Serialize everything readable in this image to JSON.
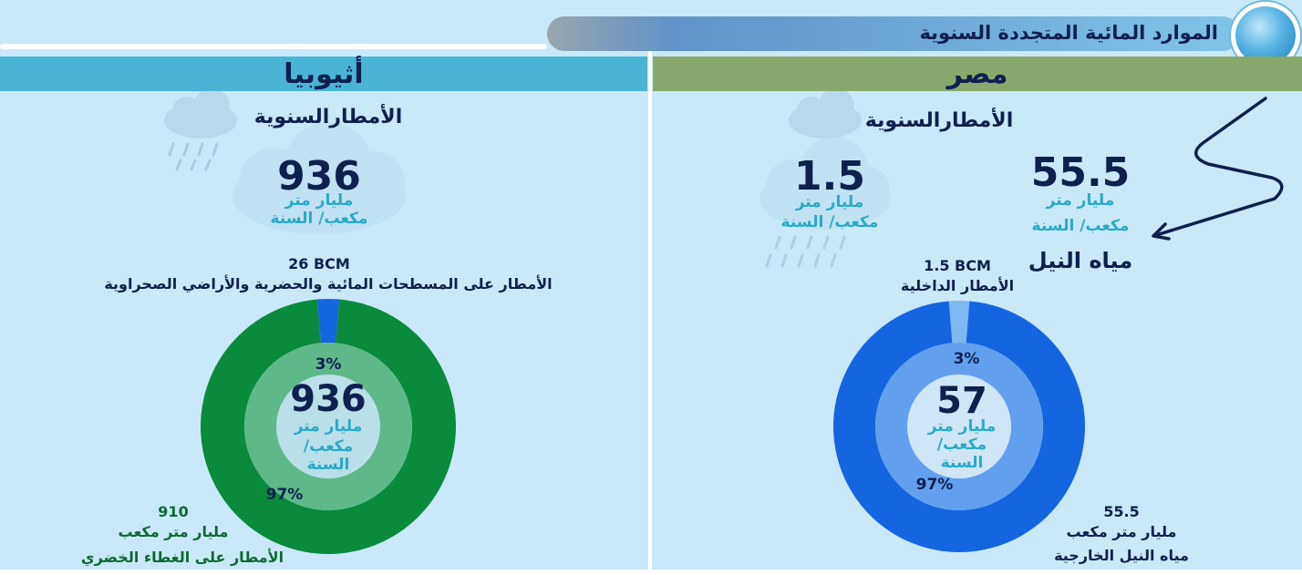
{
  "header": {
    "title": "الموارد المائية المتجددة السنوية"
  },
  "colors": {
    "background": "#c9e9f8",
    "ethiopia_band": "#4ab4d6",
    "egypt_band": "#88a86e",
    "text_dark": "#0f1f4f",
    "unit_teal": "#2aa9c9"
  },
  "icons": [
    "cloud-rain-icon",
    "cloud-icon",
    "nile-river-icon",
    "badge-icon"
  ],
  "ethiopia": {
    "country": "أثيوبيا",
    "annual_rain_label": "الأمطارالسنوية",
    "annual_rain_value": "936",
    "unit_line1": "مليار متر",
    "unit_line2": "مكعب/ السنة",
    "small_bcm": "26 BCM",
    "small_label": "الأمطار على المسطحات المائية والحضرية والأراضي الصحراوية",
    "center_value": "936",
    "center_unit1": "مليار متر",
    "center_unit2": "مكعب/",
    "center_unit3": "السنة",
    "small_pct": "3%",
    "large_pct": "97%",
    "large_value": "910",
    "large_unit": "مليار متر مكعب",
    "large_label": "الأمطار على الغطاء الخضري"
  },
  "egypt": {
    "country": "مصر",
    "annual_rain_label": "الأمطارالسنوية",
    "rain_value": "1.5",
    "rain_unit1": "مليار متر",
    "rain_unit2": "مكعب/ السنة",
    "nile_value": "55.5",
    "nile_unit1": "مليار متر",
    "nile_unit2": "مكعب/ السنة",
    "nile_label": "مياه النيل",
    "small_bcm": "1.5 BCM",
    "small_label": "الأمطار الداخلية",
    "center_value": "57",
    "center_unit1": "مليار متر",
    "center_unit2": "مكعب/",
    "center_unit3": "السنة",
    "small_pct": "3%",
    "large_pct": "97%",
    "large_value": "55.5",
    "large_unit": "مليار متر مكعب",
    "large_label": "مياه النيل الخارجية"
  },
  "chart_data": [
    {
      "type": "pie",
      "country": "أثيوبيا",
      "total": 936,
      "slices": [
        {
          "label": "الأمطار على الغطاء الخضري",
          "value": 910,
          "percent": 97,
          "color": "#0a8a3c"
        },
        {
          "label": "الأمطار على المسطحات المائية والحضرية والأراضي الصحراوية",
          "value": 26,
          "percent": 3,
          "color": "#1565e0"
        }
      ]
    },
    {
      "type": "pie",
      "country": "مصر",
      "total": 57,
      "slices": [
        {
          "label": "مياه النيل الخارجية",
          "value": 55.5,
          "percent": 97,
          "color": "#1565e0"
        },
        {
          "label": "الأمطار الداخلية",
          "value": 1.5,
          "percent": 3,
          "color": "#7fb8f0"
        }
      ]
    }
  ]
}
